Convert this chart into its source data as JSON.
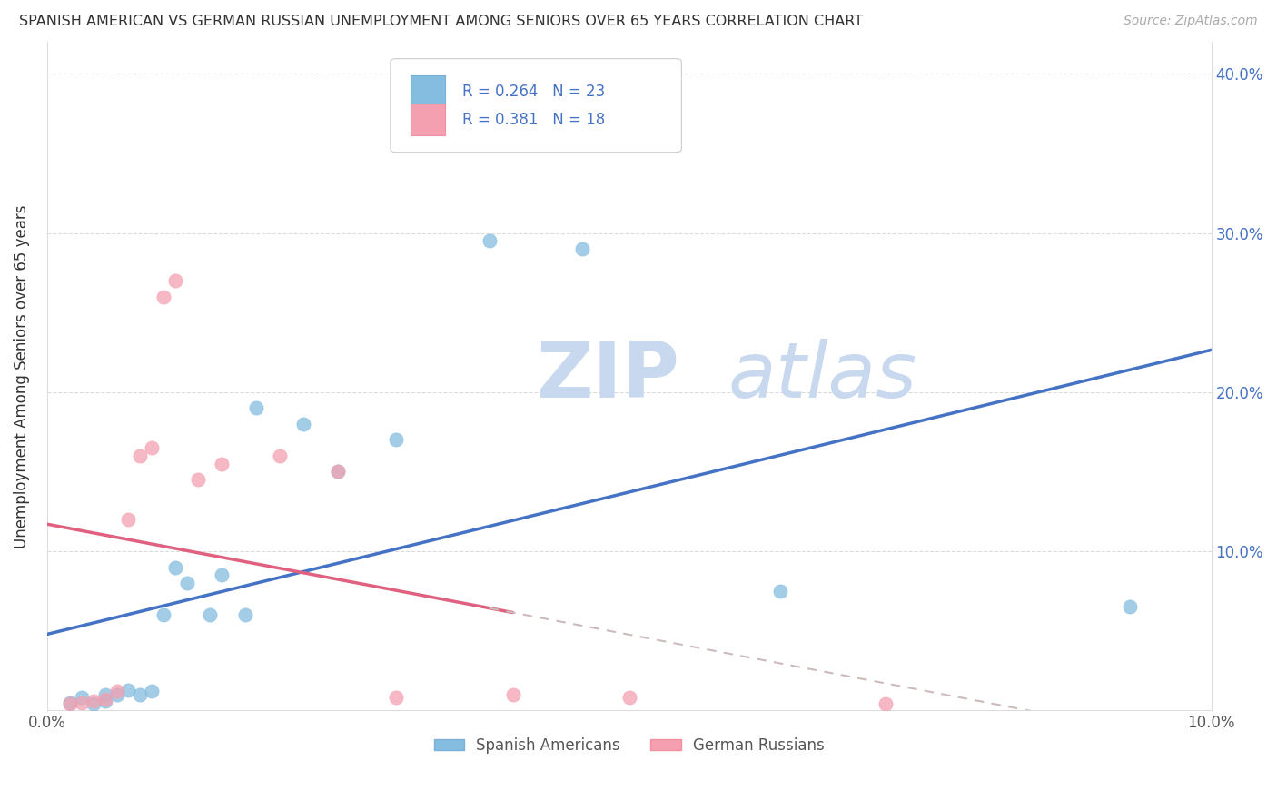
{
  "title": "SPANISH AMERICAN VS GERMAN RUSSIAN UNEMPLOYMENT AMONG SENIORS OVER 65 YEARS CORRELATION CHART",
  "source": "Source: ZipAtlas.com",
  "ylabel": "Unemployment Among Seniors over 65 years",
  "legend_bottom": [
    "Spanish Americans",
    "German Russians"
  ],
  "r_spanish": 0.264,
  "n_spanish": 23,
  "r_german": 0.381,
  "n_german": 18,
  "xlim": [
    0.0,
    0.1
  ],
  "ylim": [
    0.0,
    0.42
  ],
  "xtick_positions": [
    0.0,
    0.1
  ],
  "xtick_labels": [
    "0.0%",
    "10.0%"
  ],
  "yticks": [
    0.0,
    0.1,
    0.2,
    0.3,
    0.4
  ],
  "ytick_labels_left": [
    "",
    "",
    "",
    "",
    ""
  ],
  "ytick_labels_right": [
    "",
    "10.0%",
    "20.0%",
    "30.0%",
    "40.0%"
  ],
  "spanish_color": "#85bde0",
  "german_color": "#f4a0b0",
  "trendline_spanish_color": "#4472c4",
  "trendline_german_color": "#e06080",
  "trendline_german_dash_color": "#ccbbbb",
  "spanish_scatter": [
    [
      0.002,
      0.005
    ],
    [
      0.003,
      0.008
    ],
    [
      0.004,
      0.004
    ],
    [
      0.005,
      0.006
    ],
    [
      0.005,
      0.01
    ],
    [
      0.006,
      0.01
    ],
    [
      0.007,
      0.013
    ],
    [
      0.008,
      0.01
    ],
    [
      0.009,
      0.012
    ],
    [
      0.01,
      0.06
    ],
    [
      0.011,
      0.09
    ],
    [
      0.012,
      0.08
    ],
    [
      0.014,
      0.06
    ],
    [
      0.015,
      0.085
    ],
    [
      0.017,
      0.06
    ],
    [
      0.018,
      0.19
    ],
    [
      0.022,
      0.18
    ],
    [
      0.025,
      0.15
    ],
    [
      0.03,
      0.17
    ],
    [
      0.038,
      0.295
    ],
    [
      0.046,
      0.29
    ],
    [
      0.063,
      0.075
    ],
    [
      0.093,
      0.065
    ]
  ],
  "german_scatter": [
    [
      0.002,
      0.004
    ],
    [
      0.003,
      0.005
    ],
    [
      0.004,
      0.006
    ],
    [
      0.005,
      0.007
    ],
    [
      0.006,
      0.012
    ],
    [
      0.007,
      0.12
    ],
    [
      0.008,
      0.16
    ],
    [
      0.009,
      0.165
    ],
    [
      0.01,
      0.26
    ],
    [
      0.011,
      0.27
    ],
    [
      0.013,
      0.145
    ],
    [
      0.015,
      0.155
    ],
    [
      0.02,
      0.16
    ],
    [
      0.025,
      0.15
    ],
    [
      0.03,
      0.008
    ],
    [
      0.04,
      0.01
    ],
    [
      0.05,
      0.008
    ],
    [
      0.072,
      0.004
    ]
  ],
  "background_color": "#ffffff",
  "watermark_zip": "ZIP",
  "watermark_atlas": "atlas",
  "watermark_color": "#c8d8ee",
  "grid_color": "#cccccc",
  "grid_style": "--"
}
